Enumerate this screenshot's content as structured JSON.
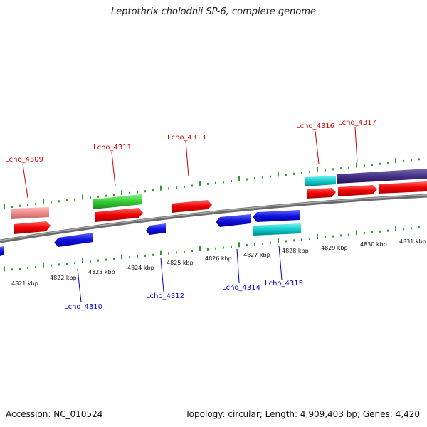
{
  "title": "Leptothrix cholodnii SP-6, complete genome",
  "footer": {
    "accession": "Accession: NC_010524",
    "topology": "Topology: circular; Length: 4,909,403 bp; Genes: 4,420"
  },
  "colors": {
    "background": "#ffffff",
    "forward_label": "#cc0000",
    "reverse_label": "#0000cc",
    "tick": "#339933",
    "backbone": "#888888",
    "red": "#ee0000",
    "pink": "#ee8888",
    "green": "#33cc33",
    "blue": "#1111dd",
    "cyan": "#11cccc",
    "purple": "#443388"
  },
  "forward_labels": [
    "Lcho_4309",
    "Lcho_4311",
    "Lcho_4313",
    "Lcho_4316",
    "Lcho_4317"
  ],
  "reverse_labels": [
    "Lcho_4310",
    "Lcho_4312",
    "Lcho_4314",
    "Lcho_4315"
  ],
  "scale_labels": [
    "4821 kbp",
    "4822 kbp",
    "4823 kbp",
    "4824 kbp",
    "4825 kbp",
    "4826 kbp",
    "4827 kbp",
    "4828 kbp",
    "4829 kbp",
    "4830 kbp",
    "4831 kbp"
  ]
}
